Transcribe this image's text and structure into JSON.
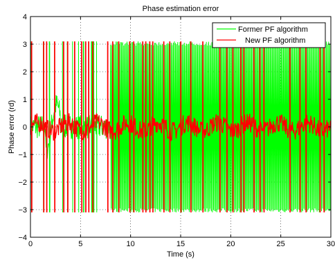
{
  "chart_data": {
    "type": "line",
    "title": "Phase estimation error",
    "xlabel": "Time (s)",
    "ylabel": "Phase error (rd)",
    "xlim": [
      0,
      30
    ],
    "ylim": [
      -4,
      4
    ],
    "xticks": [
      0,
      5,
      10,
      15,
      20,
      25,
      30
    ],
    "yticks": [
      -4,
      -3,
      -2,
      -1,
      0,
      1,
      2,
      3,
      4
    ],
    "grid": true,
    "legend_position": "top-right",
    "series": [
      {
        "name": "Former PF algorithm",
        "color": "#00ff00",
        "description_values": {
          "wrap_value": 3.1,
          "dense_wrapping_interval": [
            8.0,
            30.0
          ],
          "sparse_wrap_times": [
            0.1,
            1.3,
            1.9,
            2.4,
            3.2,
            3.7,
            4.2,
            4.8,
            5.3,
            5.8,
            6.1,
            6.3,
            6.6
          ]
        }
      },
      {
        "name": "New PF algorithm",
        "color": "#ff0000",
        "description_values": {
          "baseline_noise_amplitude": 0.35,
          "wrap_times": [
            0.1,
            1.3,
            1.6,
            2.4,
            3.3,
            3.7,
            4.4,
            5.1,
            5.5,
            5.8,
            6.2,
            7.7,
            8.2,
            8.8,
            9.9,
            10.3,
            11.2,
            11.5,
            11.9,
            12.2,
            13.3,
            13.9,
            15.0,
            16.0,
            17.2,
            18.9,
            19.6,
            20.2,
            21.0,
            21.3,
            22.3,
            22.9,
            23.3,
            25.9,
            26.9,
            27.5,
            28.9,
            29.3
          ]
        }
      }
    ]
  }
}
